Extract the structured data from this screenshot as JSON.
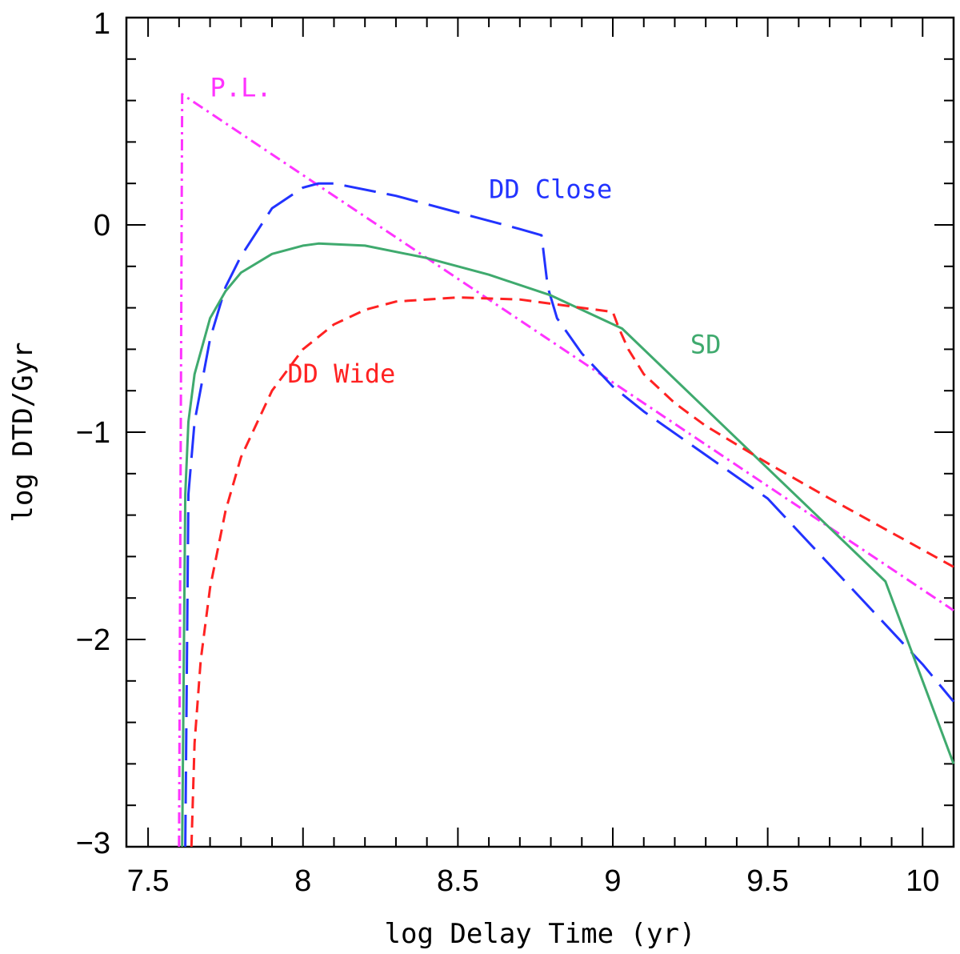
{
  "chart_data": {
    "type": "line",
    "title": "",
    "xlabel": "log Delay Time (yr)",
    "ylabel": "log DTD/Gyr",
    "xlim": [
      7.43,
      10.1
    ],
    "ylim": [
      -3,
      1
    ],
    "x_ticks": [
      7.5,
      8,
      8.5,
      9,
      9.5,
      10
    ],
    "x_tick_labels": [
      "7.5",
      "8",
      "8.5",
      "9",
      "9.5",
      "10"
    ],
    "y_ticks": [
      -3,
      -2,
      -1,
      0,
      1
    ],
    "y_tick_labels": [
      "-3",
      "-2",
      "-1",
      "0",
      "1"
    ],
    "grid": false,
    "series": [
      {
        "name": "P.L.",
        "label": "P.L.",
        "color": "#ff33ff",
        "style": "dash-dot",
        "label_pos": [
          7.7,
          0.62
        ],
        "points": [
          [
            7.6,
            -3.0
          ],
          [
            7.61,
            0.63
          ],
          [
            10.1,
            -1.86
          ]
        ]
      },
      {
        "name": "DD Close",
        "label": "DD Close",
        "color": "#2233ff",
        "style": "long-dash",
        "label_pos": [
          8.6,
          0.13
        ],
        "points": [
          [
            7.62,
            -3.0
          ],
          [
            7.63,
            -1.3
          ],
          [
            7.65,
            -0.95
          ],
          [
            7.7,
            -0.55
          ],
          [
            7.75,
            -0.3
          ],
          [
            7.8,
            -0.15
          ],
          [
            7.9,
            0.08
          ],
          [
            8.0,
            0.18
          ],
          [
            8.05,
            0.2
          ],
          [
            8.1,
            0.2
          ],
          [
            8.3,
            0.14
          ],
          [
            8.5,
            0.06
          ],
          [
            8.7,
            -0.02
          ],
          [
            8.77,
            -0.05
          ],
          [
            8.79,
            -0.3
          ],
          [
            8.82,
            -0.45
          ],
          [
            8.9,
            -0.62
          ],
          [
            9.0,
            -0.78
          ],
          [
            9.1,
            -0.9
          ],
          [
            9.5,
            -1.32
          ],
          [
            10.0,
            -2.12
          ],
          [
            10.1,
            -2.3
          ]
        ]
      },
      {
        "name": "SD",
        "label": "SD",
        "color": "#3faa6e",
        "style": "solid",
        "label_pos": [
          9.25,
          -0.62
        ],
        "points": [
          [
            7.61,
            -3.0
          ],
          [
            7.62,
            -1.3
          ],
          [
            7.63,
            -0.95
          ],
          [
            7.65,
            -0.72
          ],
          [
            7.7,
            -0.45
          ],
          [
            7.75,
            -0.32
          ],
          [
            7.8,
            -0.23
          ],
          [
            7.9,
            -0.14
          ],
          [
            8.0,
            -0.1
          ],
          [
            8.05,
            -0.09
          ],
          [
            8.2,
            -0.1
          ],
          [
            8.4,
            -0.16
          ],
          [
            8.6,
            -0.24
          ],
          [
            8.8,
            -0.34
          ],
          [
            9.03,
            -0.5
          ],
          [
            9.88,
            -1.72
          ],
          [
            10.1,
            -2.6
          ]
        ]
      },
      {
        "name": "DD Wide",
        "label": "DD Wide",
        "color": "#ff2222",
        "style": "short-dash",
        "label_pos": [
          7.95,
          -0.76
        ],
        "points": [
          [
            7.64,
            -3.0
          ],
          [
            7.65,
            -2.5
          ],
          [
            7.67,
            -2.1
          ],
          [
            7.7,
            -1.75
          ],
          [
            7.75,
            -1.38
          ],
          [
            7.8,
            -1.12
          ],
          [
            7.9,
            -0.8
          ],
          [
            8.0,
            -0.6
          ],
          [
            8.1,
            -0.48
          ],
          [
            8.2,
            -0.41
          ],
          [
            8.3,
            -0.37
          ],
          [
            8.5,
            -0.35
          ],
          [
            8.7,
            -0.36
          ],
          [
            8.9,
            -0.4
          ],
          [
            9.0,
            -0.42
          ],
          [
            9.02,
            -0.5
          ],
          [
            9.05,
            -0.6
          ],
          [
            9.1,
            -0.72
          ],
          [
            9.2,
            -0.86
          ],
          [
            9.3,
            -0.97
          ],
          [
            9.5,
            -1.15
          ],
          [
            9.7,
            -1.32
          ],
          [
            10.1,
            -1.65
          ]
        ]
      }
    ]
  }
}
